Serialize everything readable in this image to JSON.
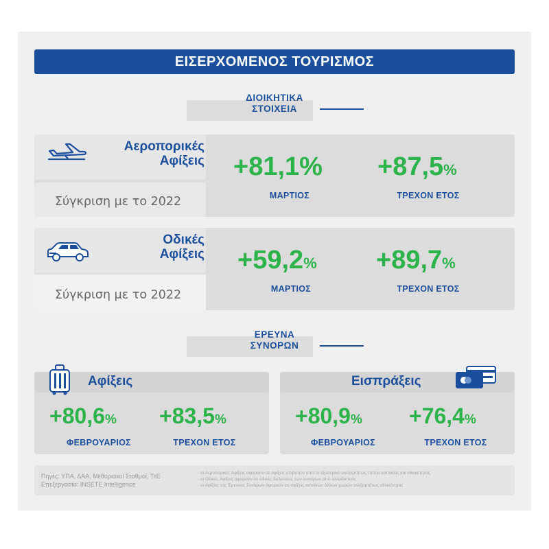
{
  "header": {
    "title": "ΕΙΣΕΡΧΟΜΕΝΟΣ ΤΟΥΡΙΣΜΟΣ"
  },
  "section_admin": {
    "line1": "ΔΙΟΙΚΗΤΙΚΑ",
    "line2": "ΣΤΟΙΧΕΙΑ"
  },
  "air": {
    "title_line1": "Αεροπορικές",
    "title_line2": "Αφίξεις",
    "compare": "Σύγκριση με το 2022",
    "m1_value": "+81,1%",
    "m1_label": "ΜΑΡΤΙΟΣ",
    "m2_value": "+87,5",
    "m2_symbol": "%",
    "m2_label": "ΤΡΕΧΟΝ ΕΤΟΣ",
    "icon": "airplane-icon"
  },
  "road": {
    "title_line1": "Οδικές",
    "title_line2": "Αφίξεις",
    "compare": "Σύγκριση με το 2022",
    "m1_value": "+59,2",
    "m1_symbol": "%",
    "m1_label": "ΜΑΡΤΙΟΣ",
    "m2_value": "+89,7",
    "m2_symbol": "%",
    "m2_label": "ΤΡΕΧΟΝ ΕΤΟΣ",
    "icon": "car-icon"
  },
  "section_border": {
    "line1": "ΕΡΕΥΝΑ",
    "line2": "ΣΥΝΟΡΩΝ"
  },
  "arrivals": {
    "title": "Αφίξεις",
    "m1_value": "+80,6",
    "m1_symbol": "%",
    "m1_label": "ΦΕΒΡΟΥΑΡΙΟΣ",
    "m2_value": "+83,5",
    "m2_symbol": "%",
    "m2_label": "ΤΡΕΧΟΝ ΕΤΟΣ",
    "icon": "luggage-icon"
  },
  "receipts": {
    "title": "Εισπράξεις",
    "m1_value": "+80,9",
    "m1_symbol": "%",
    "m1_label": "ΦΕΒΡΟΥΑΡΙΟΣ",
    "m2_value": "+76,4",
    "m2_symbol": "%",
    "m2_label": "ΤΡΕΧΟΝ ΕΤΟΣ",
    "icon": "credit-cards-icon"
  },
  "footer": {
    "source_line1": "Πηγές: ΥΠΑ, ΔΑΑ, Μεθοριακοί Σταθμοί, ΤτΕ",
    "source_line2": "Επεξεργασία: INSETE Intelligence",
    "note1": "- οι Αεροπορικές Αφίξεις αφορούν σε αφίξεις επιβατών από το εξωτερικό ανεξαρτήτως τόπου κατοικίας και εθνικότητας",
    "note2": "- οι Οδικές Αφίξεις αφορούν σε οδικές διελεύσεις των συνόρων από αλλοδαπούς",
    "note3": "- οι Αφίξεις της Έρευνας Συνόρων αφορούν σε αφίξεις κατοίκων άλλων χωρών ανεξαρτήτως εθνικότητας"
  },
  "colors": {
    "brand_blue": "#1b4f9b",
    "accent_green": "#2cb34a",
    "panel_gray": "#dcdcdd"
  }
}
